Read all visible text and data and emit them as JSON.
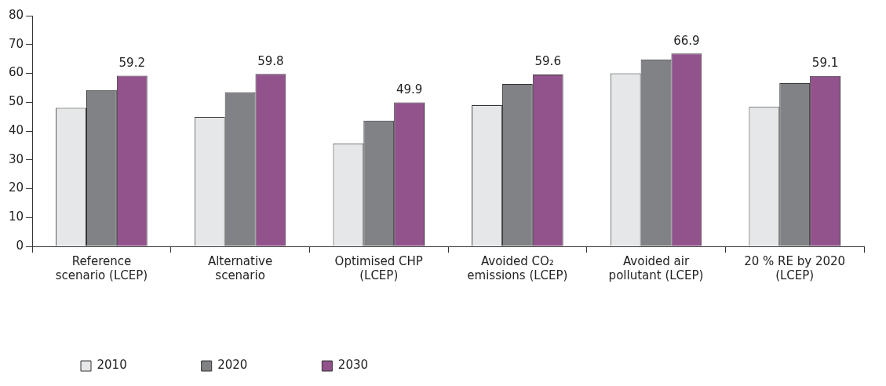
{
  "chart_data": {
    "type": "bar",
    "categories": [
      "Reference scenario (LCEP)",
      "Alternative scenario",
      "Optimised CHP (LCEP)",
      "Avoided CO₂ emissions (LCEP)",
      "Avoided air pollutant (LCEP)",
      "20 % RE by 2020 (LCEP)"
    ],
    "series": [
      {
        "name": "2010",
        "color": "#e6e7e8",
        "values": [
          48.0,
          44.9,
          35.7,
          49.0,
          60.0,
          48.4
        ]
      },
      {
        "name": "2020",
        "color": "#808285",
        "values": [
          54.2,
          53.5,
          43.6,
          56.3,
          64.8,
          56.6
        ]
      },
      {
        "name": "2030",
        "color": "#92528c",
        "values": [
          59.2,
          59.8,
          49.9,
          59.6,
          66.9,
          59.1
        ],
        "value_labels": [
          "59.2",
          "59.8",
          "49.9",
          "59.6",
          "66.9",
          "59.1"
        ]
      }
    ],
    "ylim": [
      0,
      80
    ],
    "yticks": [
      0,
      10,
      20,
      30,
      40,
      50,
      60,
      70,
      80
    ],
    "grid": false,
    "legend": "bottom left"
  }
}
